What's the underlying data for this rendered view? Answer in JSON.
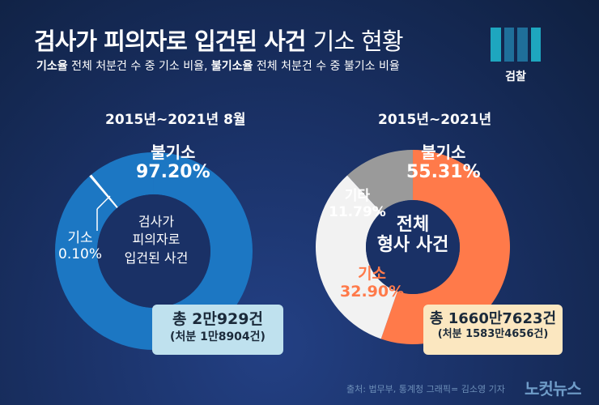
{
  "header": {
    "title_bold": "검사가 피의자로 입건된 사건",
    "title_light": "기소 현황",
    "subtitle": [
      {
        "bold": "기소율",
        "text": " 전체 처분건 수 중 기소 비율, "
      },
      {
        "bold": "불기소율",
        "text": " 전체 처분건 수 중 불기소 비율"
      }
    ],
    "logo_text": "검찰"
  },
  "chart_data": [
    {
      "type": "pie",
      "variant": "donut",
      "title": "2015년~2021년 8월",
      "center_label": [
        "검사가",
        "피의자로",
        "입건된 사건"
      ],
      "slices": [
        {
          "name": "불기소",
          "value": 97.2,
          "label": "97.20%",
          "color": "#1c77c3"
        },
        {
          "name": "기소",
          "value": 0.1,
          "label": "0.10%",
          "color": "#ffffff"
        }
      ],
      "summary": {
        "total": "총 2만929건",
        "disposed": "(처분 1만8904건)"
      }
    },
    {
      "type": "pie",
      "variant": "donut",
      "title": "2015년~2021년",
      "center_label": [
        "전체",
        "형사 사건"
      ],
      "slices": [
        {
          "name": "불기소",
          "value": 55.31,
          "label": "55.31%",
          "color": "#ff7a4a"
        },
        {
          "name": "기소",
          "value": 32.9,
          "label": "32.90%",
          "color": "#f2f2f2"
        },
        {
          "name": "기타",
          "value": 11.79,
          "label": "11.79%",
          "color": "#9a9a9a"
        }
      ],
      "summary": {
        "total": "총 1660만7623건",
        "disposed": "(처분 1583만4656건)"
      }
    }
  ],
  "footer": {
    "credit": "출처: 법무부, 통계청   그래픽= 김소영 기자",
    "brand": "노컷뉴스"
  }
}
